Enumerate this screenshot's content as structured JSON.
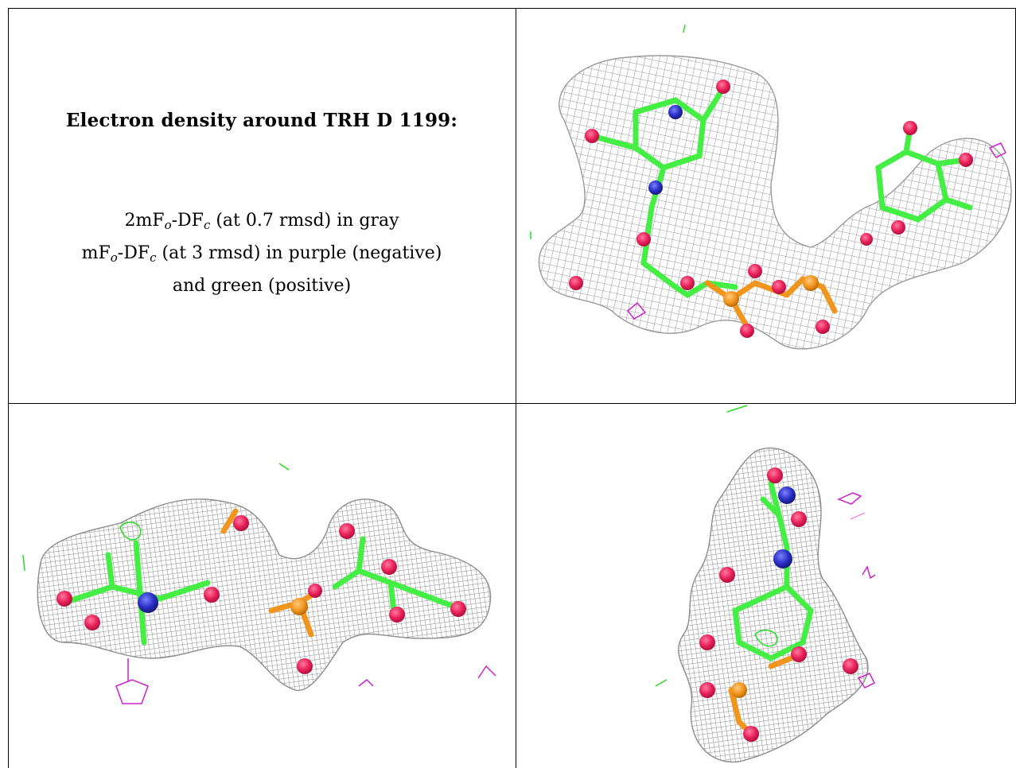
{
  "caption": {
    "title": "Electron density around TRH D 1199:",
    "line1": {
      "a": "2mF",
      "sub1": "o",
      "b": "-DF",
      "sub2": "c",
      "rest": " (at 0.7 rmsd) in gray"
    },
    "line2": {
      "a": "mF",
      "sub1": "o",
      "b": "-DF",
      "sub2": "c",
      "rest": " (at 3 rmsd) in purple (negative)"
    },
    "line3": "and green (positive)"
  },
  "colors": {
    "mesh_gray": "#9e9e9e",
    "carbon_green": "#44ee44",
    "oxygen_red": "#e8215a",
    "nitrogen_blue": "#2a2fc4",
    "phosphorus_orange": "#f0961e",
    "negative_purple": "#cc22cc",
    "positive_green": "#22dd22"
  }
}
